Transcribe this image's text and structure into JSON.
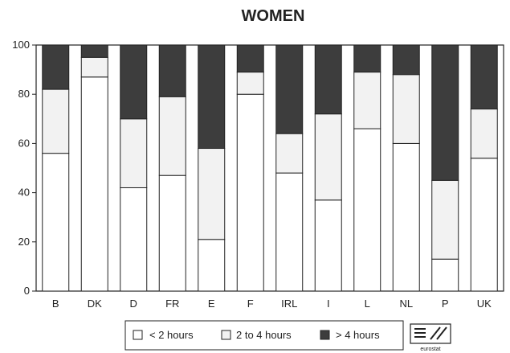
{
  "colors": {
    "lt2": "#ffffff",
    "2to4": "#f2f2f2",
    "gt4": "#3d3d3d",
    "axis": "#222222"
  },
  "logo": {
    "text": "eurostat"
  },
  "chart_data": {
    "type": "bar",
    "stacked": true,
    "title": "WOMEN",
    "xlabel": "",
    "ylabel": "",
    "ylim": [
      0,
      100
    ],
    "yticks": [
      0,
      20,
      40,
      60,
      80,
      100
    ],
    "grid": false,
    "legend_position": "bottom",
    "categories": [
      "B",
      "DK",
      "D",
      "FR",
      "E",
      "F",
      "IRL",
      "I",
      "L",
      "NL",
      "P",
      "UK"
    ],
    "series": [
      {
        "name": "< 2 hours",
        "key": "lt2",
        "values": [
          56,
          87,
          42,
          47,
          21,
          80,
          48,
          37,
          66,
          60,
          13,
          54
        ]
      },
      {
        "name": "2 to 4 hours",
        "key": "2to4",
        "values": [
          26,
          8,
          28,
          32,
          37,
          9,
          16,
          35,
          23,
          28,
          32,
          20
        ]
      },
      {
        "name": "> 4 hours",
        "key": "gt4",
        "values": [
          18,
          5,
          30,
          21,
          42,
          11,
          36,
          28,
          11,
          12,
          55,
          26
        ]
      }
    ]
  }
}
